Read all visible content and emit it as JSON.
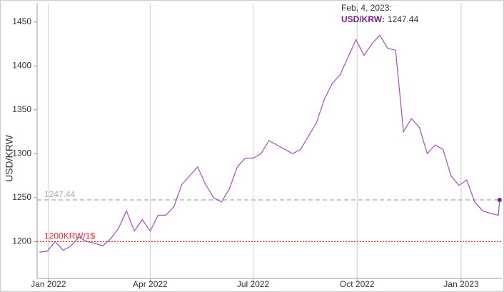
{
  "chart_data": {
    "type": "line",
    "y_label": "USD/KRW",
    "x": [
      "2021-12-24",
      "2021-12-31",
      "2022-01-07",
      "2022-01-14",
      "2022-01-21",
      "2022-01-28",
      "2022-02-04",
      "2022-02-11",
      "2022-02-18",
      "2022-02-25",
      "2022-03-04",
      "2022-03-11",
      "2022-03-18",
      "2022-03-25",
      "2022-04-01",
      "2022-04-08",
      "2022-04-15",
      "2022-04-22",
      "2022-04-29",
      "2022-05-06",
      "2022-05-13",
      "2022-05-20",
      "2022-05-27",
      "2022-06-03",
      "2022-06-10",
      "2022-06-17",
      "2022-06-24",
      "2022-07-01",
      "2022-07-08",
      "2022-07-15",
      "2022-07-22",
      "2022-07-29",
      "2022-08-05",
      "2022-08-12",
      "2022-08-19",
      "2022-08-26",
      "2022-09-02",
      "2022-09-09",
      "2022-09-16",
      "2022-09-23",
      "2022-09-30",
      "2022-10-07",
      "2022-10-14",
      "2022-10-21",
      "2022-10-28",
      "2022-11-04",
      "2022-11-11",
      "2022-11-18",
      "2022-11-25",
      "2022-12-02",
      "2022-12-09",
      "2022-12-16",
      "2022-12-23",
      "2022-12-30",
      "2023-01-06",
      "2023-01-13",
      "2023-01-20",
      "2023-01-27",
      "2023-02-03",
      "2023-02-04"
    ],
    "series": [
      {
        "name": "USD/KRW",
        "color": "#a64dbf",
        "values": [
          1188,
          1189,
          1200,
          1190,
          1195,
          1205,
          1200,
          1198,
          1195,
          1203,
          1215,
          1235,
          1212,
          1225,
          1212,
          1230,
          1230,
          1240,
          1265,
          1275,
          1285,
          1265,
          1250,
          1245,
          1260,
          1285,
          1295,
          1295,
          1300,
          1315,
          1310,
          1305,
          1300,
          1305,
          1320,
          1335,
          1362,
          1380,
          1390,
          1410,
          1430,
          1412,
          1425,
          1435,
          1420,
          1418,
          1325,
          1340,
          1330,
          1300,
          1310,
          1305,
          1275,
          1264,
          1270,
          1245,
          1235,
          1232,
          1230,
          1247.44
        ]
      }
    ],
    "xlim": [
      "2021-12-22",
      "2023-02-06"
    ],
    "xticks": [
      {
        "value": "2022-01-01",
        "label": "Jan 2022"
      },
      {
        "value": "2022-04-01",
        "label": "Apr 2022"
      },
      {
        "value": "2022-07-01",
        "label": "Jul 2022"
      },
      {
        "value": "2022-10-01",
        "label": "Oct 2022"
      },
      {
        "value": "2023-01-01",
        "label": "Jan 2023"
      }
    ],
    "ylim": [
      1158,
      1471
    ],
    "yticks": [
      1200,
      1250,
      1300,
      1350,
      1400,
      1450
    ],
    "grid": "x",
    "reference_lines": [
      {
        "value": 1247.44,
        "color": "#aaaaaa",
        "style": "dashed"
      },
      {
        "value": 1200,
        "label": "1200KRW/1$",
        "color": "#ff2020",
        "style": "dotted"
      }
    ],
    "tooltip": {
      "title": "Feb, 4, 2023:",
      "series_label": "USD/KRW:",
      "value": 1247.44,
      "color": "#7a1f8f"
    }
  }
}
